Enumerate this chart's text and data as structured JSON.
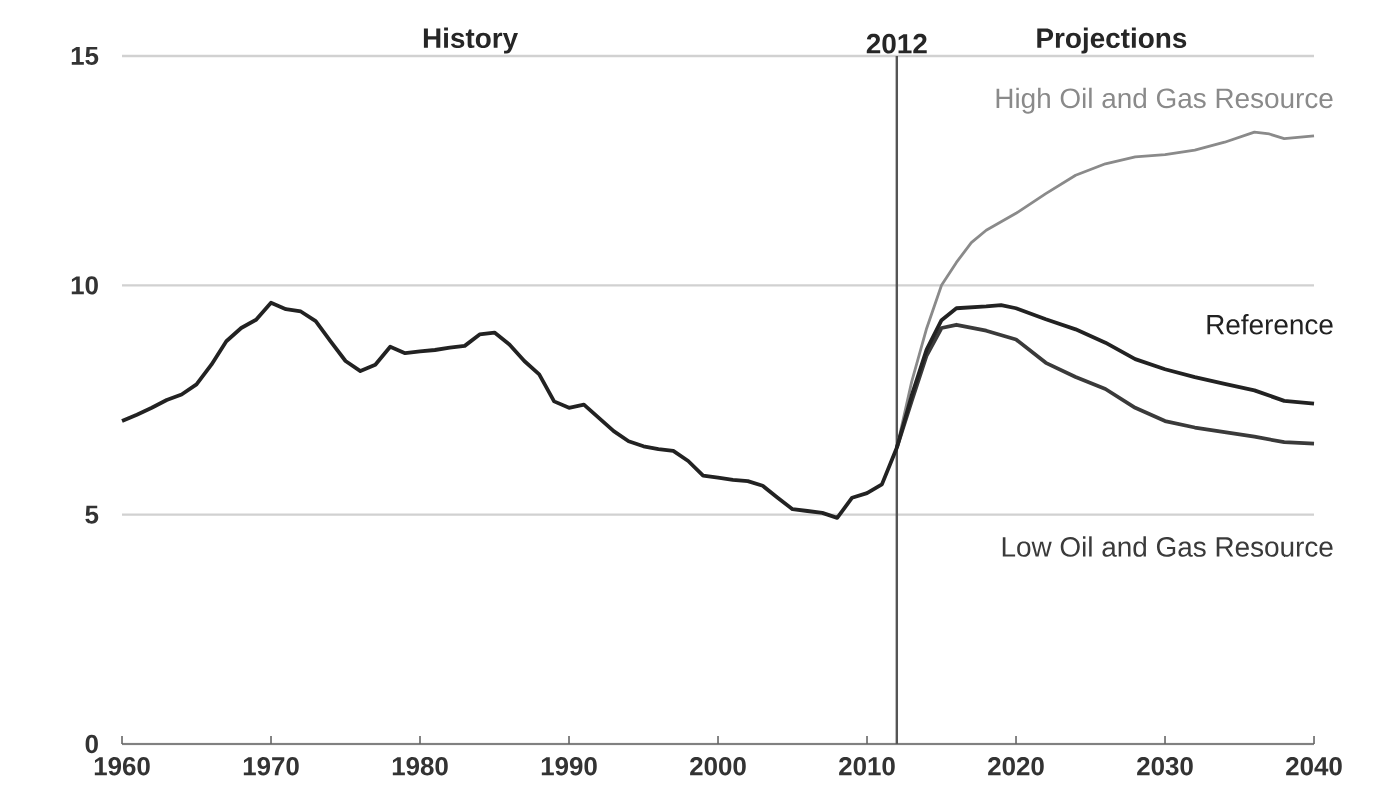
{
  "chart_data": {
    "type": "line",
    "xlim": [
      1960,
      2040
    ],
    "xticks": [
      1960,
      1970,
      1980,
      1990,
      2000,
      2010,
      2020,
      2030,
      2040
    ],
    "ylim": [
      0,
      15
    ],
    "yticks": [
      0,
      5,
      10,
      15
    ],
    "grid": "y",
    "line_style": "solid",
    "annotations": [
      "History",
      "Projections"
    ],
    "ref_lines": [
      {
        "axis": "x",
        "value": 2012,
        "label": "2012",
        "color": "#555555"
      }
    ],
    "series": [
      {
        "name": "High Oil and Gas Resource",
        "color": "#8a8a8a",
        "x": [
          2012,
          2013,
          2014,
          2015,
          2016,
          2017,
          2018,
          2020,
          2022,
          2024,
          2026,
          2028,
          2030,
          2032,
          2034,
          2036,
          2037,
          2038,
          2040
        ],
        "values": [
          6.46,
          7.9,
          9.06,
          10.0,
          10.5,
          10.93,
          11.2,
          11.57,
          12.0,
          12.4,
          12.65,
          12.8,
          12.85,
          12.95,
          13.12,
          13.34,
          13.3,
          13.2,
          13.26
        ]
      },
      {
        "name": "Low Oil and Gas Resource",
        "color": "#3a3a3a",
        "x": [
          2012,
          2013,
          2014,
          2015,
          2016,
          2018,
          2020,
          2022,
          2024,
          2026,
          2028,
          2030,
          2032,
          2034,
          2036,
          2038,
          2040
        ],
        "values": [
          6.46,
          7.48,
          8.47,
          9.07,
          9.14,
          9.01,
          8.82,
          8.31,
          8.0,
          7.74,
          7.33,
          7.04,
          6.9,
          6.8,
          6.7,
          6.58,
          6.55
        ]
      },
      {
        "name": "Reference",
        "color": "#222222",
        "x": [
          1960,
          1961,
          1962,
          1963,
          1964,
          1965,
          1966,
          1967,
          1968,
          1969,
          1970,
          1971,
          1972,
          1973,
          1974,
          1975,
          1976,
          1977,
          1978,
          1979,
          1980,
          1981,
          1982,
          1983,
          1984,
          1985,
          1986,
          1987,
          1988,
          1989,
          1990,
          1991,
          1992,
          1993,
          1994,
          1995,
          1996,
          1997,
          1998,
          1999,
          2000,
          2001,
          2002,
          2003,
          2004,
          2005,
          2006,
          2007,
          2008,
          2009,
          2010,
          2011,
          2012,
          2013,
          2014,
          2015,
          2016,
          2018,
          2019,
          2020,
          2022,
          2024,
          2026,
          2028,
          2030,
          2032,
          2034,
          2036,
          2038,
          2040
        ],
        "values": [
          7.04,
          7.18,
          7.33,
          7.5,
          7.62,
          7.84,
          8.27,
          8.78,
          9.07,
          9.25,
          9.62,
          9.48,
          9.43,
          9.22,
          8.78,
          8.35,
          8.13,
          8.27,
          8.66,
          8.52,
          8.56,
          8.59,
          8.64,
          8.68,
          8.93,
          8.97,
          8.71,
          8.35,
          8.06,
          7.47,
          7.33,
          7.4,
          7.11,
          6.82,
          6.6,
          6.49,
          6.43,
          6.39,
          6.17,
          5.85,
          5.81,
          5.76,
          5.73,
          5.63,
          5.37,
          5.12,
          5.08,
          5.04,
          4.93,
          5.37,
          5.47,
          5.66,
          6.46,
          7.6,
          8.6,
          9.24,
          9.5,
          9.54,
          9.57,
          9.5,
          9.26,
          9.04,
          8.75,
          8.39,
          8.17,
          8.0,
          7.85,
          7.71,
          7.48,
          7.42
        ]
      }
    ]
  }
}
